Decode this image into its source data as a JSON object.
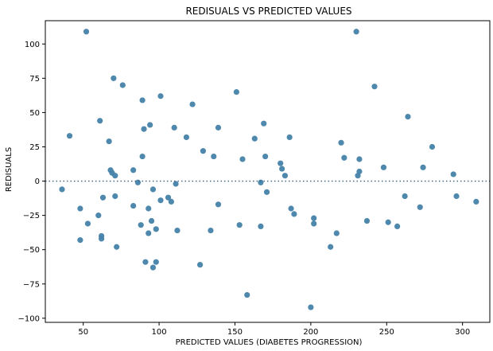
{
  "chart_data": {
    "type": "scatter",
    "title": "REDISUALS VS PREDICTED VALUES",
    "xlabel": "PREDICTED VALUES (DIABETES PROGRESSION)",
    "ylabel": "REDISUALS",
    "xlim": [
      25,
      318
    ],
    "ylim": [
      -103,
      117
    ],
    "xticks": [
      50,
      100,
      150,
      200,
      250,
      300
    ],
    "yticks": [
      -100,
      -75,
      -50,
      -25,
      0,
      25,
      50,
      75,
      100
    ],
    "reference_line": {
      "y": 0,
      "style": "dotted"
    },
    "grid": false,
    "point_color": "#4682a9",
    "points": [
      [
        36,
        -6
      ],
      [
        41,
        33
      ],
      [
        48,
        -43
      ],
      [
        48,
        -20
      ],
      [
        52,
        109
      ],
      [
        53,
        -31
      ],
      [
        60,
        -25
      ],
      [
        61,
        44
      ],
      [
        62,
        -40
      ],
      [
        62,
        -42
      ],
      [
        63,
        -12
      ],
      [
        67,
        29
      ],
      [
        68,
        8
      ],
      [
        69,
        6
      ],
      [
        70,
        75
      ],
      [
        71,
        -11
      ],
      [
        71,
        4
      ],
      [
        72,
        -48
      ],
      [
        76,
        70
      ],
      [
        83,
        8
      ],
      [
        83,
        -18
      ],
      [
        86,
        -1
      ],
      [
        88,
        -32
      ],
      [
        89,
        18
      ],
      [
        89,
        59
      ],
      [
        90,
        38
      ],
      [
        91,
        -59
      ],
      [
        93,
        -38
      ],
      [
        93,
        -20
      ],
      [
        94,
        41
      ],
      [
        95,
        -29
      ],
      [
        96,
        -63
      ],
      [
        96,
        -6
      ],
      [
        98,
        -35
      ],
      [
        98,
        -59
      ],
      [
        101,
        62
      ],
      [
        101,
        -14
      ],
      [
        106,
        -12
      ],
      [
        108,
        -15
      ],
      [
        110,
        39
      ],
      [
        111,
        -2
      ],
      [
        112,
        -36
      ],
      [
        118,
        32
      ],
      [
        122,
        56
      ],
      [
        127,
        -61
      ],
      [
        129,
        22
      ],
      [
        134,
        -36
      ],
      [
        136,
        18
      ],
      [
        139,
        39
      ],
      [
        139,
        -17
      ],
      [
        151,
        65
      ],
      [
        153,
        -32
      ],
      [
        155,
        16
      ],
      [
        158,
        -83
      ],
      [
        163,
        31
      ],
      [
        167,
        -1
      ],
      [
        167,
        -33
      ],
      [
        169,
        42
      ],
      [
        170,
        18
      ],
      [
        171,
        -8
      ],
      [
        180,
        13
      ],
      [
        181,
        9
      ],
      [
        183,
        4
      ],
      [
        186,
        32
      ],
      [
        187,
        -20
      ],
      [
        189,
        -24
      ],
      [
        200,
        -92
      ],
      [
        202,
        -27
      ],
      [
        202,
        -31
      ],
      [
        213,
        -48
      ],
      [
        217,
        -38
      ],
      [
        220,
        28
      ],
      [
        222,
        17
      ],
      [
        230,
        109
      ],
      [
        231,
        4
      ],
      [
        232,
        7
      ],
      [
        232,
        16
      ],
      [
        237,
        -29
      ],
      [
        242,
        69
      ],
      [
        248,
        10
      ],
      [
        251,
        -30
      ],
      [
        257,
        -33
      ],
      [
        262,
        -11
      ],
      [
        264,
        47
      ],
      [
        272,
        -19
      ],
      [
        274,
        10
      ],
      [
        280,
        25
      ],
      [
        294,
        5
      ],
      [
        296,
        -11
      ],
      [
        309,
        -15
      ]
    ]
  }
}
